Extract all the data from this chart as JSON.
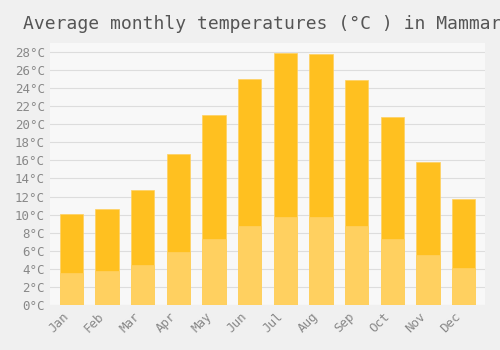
{
  "title": "Average monthly temperatures (°C ) in Mammari",
  "months": [
    "Jan",
    "Feb",
    "Mar",
    "Apr",
    "May",
    "Jun",
    "Jul",
    "Aug",
    "Sep",
    "Oct",
    "Nov",
    "Dec"
  ],
  "values": [
    10.1,
    10.6,
    12.7,
    16.7,
    21.0,
    25.0,
    27.9,
    27.8,
    24.9,
    20.8,
    15.8,
    11.7
  ],
  "bar_color_top": "#FFC020",
  "bar_color_bottom": "#FFD060",
  "background_color": "#F0F0F0",
  "plot_bg_color": "#F8F8F8",
  "ylim": [
    0,
    29
  ],
  "ytick_step": 2,
  "title_fontsize": 13,
  "tick_fontsize": 9,
  "grid_color": "#DDDDDD"
}
